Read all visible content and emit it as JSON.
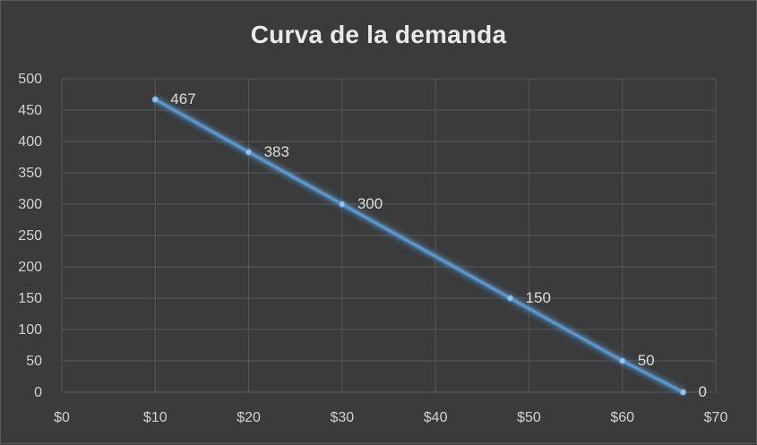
{
  "chart_data": {
    "type": "line",
    "title": "Curva de la demanda",
    "xlabel": "",
    "ylabel": "",
    "xlim": [
      0,
      70
    ],
    "ylim": [
      0,
      500
    ],
    "x_ticks": [
      0,
      10,
      20,
      30,
      40,
      50,
      60,
      70
    ],
    "x_tick_labels": [
      "$0",
      "$10",
      "$20",
      "$30",
      "$40",
      "$50",
      "$60",
      "$70"
    ],
    "y_ticks": [
      0,
      50,
      100,
      150,
      200,
      250,
      300,
      350,
      400,
      450,
      500
    ],
    "y_tick_labels": [
      "0",
      "50",
      "100",
      "150",
      "200",
      "250",
      "300",
      "350",
      "400",
      "450",
      "500"
    ],
    "grid": true,
    "legend": "none",
    "series": [
      {
        "x": [
          10,
          20,
          30,
          48,
          60,
          66.5
        ],
        "y": [
          467,
          383,
          300,
          150,
          50,
          0
        ],
        "labels": [
          "467",
          "383",
          "300",
          "150",
          "50",
          "0"
        ]
      }
    ],
    "colors": {
      "background": "#3b3b3b",
      "grid": "#575757",
      "line": "#5b9bd5",
      "glow": "#5b9bd5",
      "text": "#d2d2d2"
    }
  }
}
